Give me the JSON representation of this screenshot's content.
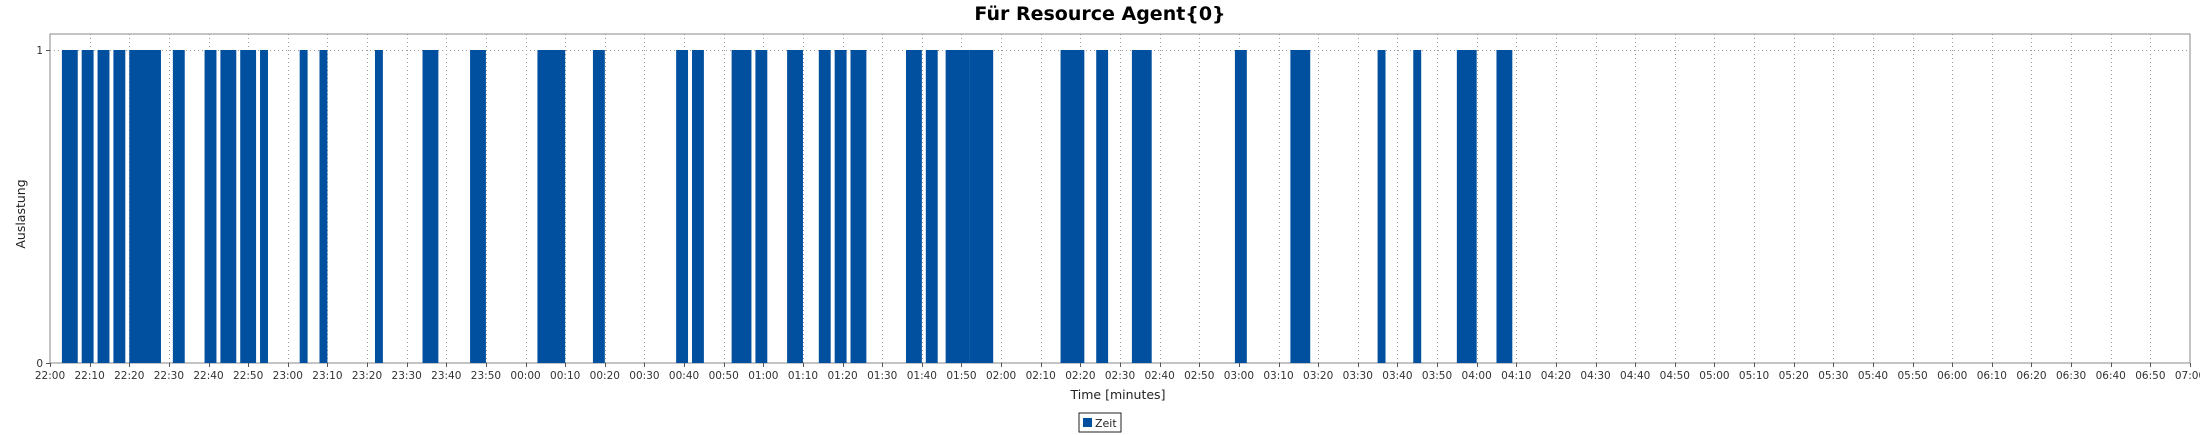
{
  "chart_data": {
    "type": "bar",
    "title": "Für Resource Agent{0}",
    "xlabel": "Time [minutes]",
    "ylabel": "Auslastung",
    "x_range_minutes": [
      0,
      540
    ],
    "x_start_clock": "22:00",
    "x_tick_step_minutes": 10,
    "x_tick_labels": [
      "22:00",
      "22:10",
      "22:20",
      "22:30",
      "22:40",
      "22:50",
      "23:00",
      "23:10",
      "23:20",
      "23:30",
      "23:40",
      "23:50",
      "00:00",
      "00:10",
      "00:20",
      "00:30",
      "00:40",
      "00:50",
      "01:00",
      "01:10",
      "01:20",
      "01:30",
      "01:40",
      "01:50",
      "02:00",
      "02:10",
      "02:20",
      "02:30",
      "02:40",
      "02:50",
      "03:00",
      "03:10",
      "03:20",
      "03:30",
      "03:40",
      "03:50",
      "04:00",
      "04:10",
      "04:20",
      "04:30",
      "04:40",
      "04:50",
      "05:00",
      "05:10",
      "05:20",
      "05:30",
      "05:40",
      "05:50",
      "06:00",
      "06:10",
      "06:20",
      "06:30",
      "06:40",
      "06:50",
      "07:00"
    ],
    "ylim": [
      0,
      1
    ],
    "y_ticks": [
      0,
      1
    ],
    "grid": true,
    "legend_position": "bottom-center",
    "series": [
      {
        "name": "Zeit",
        "color": "#00509f",
        "intervals": [
          [
            "22:03",
            "22:07"
          ],
          [
            "22:08",
            "22:11"
          ],
          [
            "22:12",
            "22:15"
          ],
          [
            "22:16",
            "22:19"
          ],
          [
            "22:20",
            "22:28"
          ],
          [
            "22:31",
            "22:34"
          ],
          [
            "22:39",
            "22:42"
          ],
          [
            "22:43",
            "22:47"
          ],
          [
            "22:48",
            "22:52"
          ],
          [
            "22:53",
            "22:55"
          ],
          [
            "23:03",
            "23:05"
          ],
          [
            "23:08",
            "23:10"
          ],
          [
            "23:22",
            "23:24"
          ],
          [
            "23:34",
            "23:38"
          ],
          [
            "23:46",
            "23:50"
          ],
          [
            "00:03",
            "00:10"
          ],
          [
            "00:17",
            "00:20"
          ],
          [
            "00:38",
            "00:41"
          ],
          [
            "00:42",
            "00:45"
          ],
          [
            "00:52",
            "00:57"
          ],
          [
            "00:58",
            "01:01"
          ],
          [
            "01:06",
            "01:10"
          ],
          [
            "01:14",
            "01:17"
          ],
          [
            "01:18",
            "01:21"
          ],
          [
            "01:22",
            "01:26"
          ],
          [
            "01:36",
            "01:40"
          ],
          [
            "01:41",
            "01:44"
          ],
          [
            "01:46",
            "01:52"
          ],
          [
            "01:52",
            "01:58"
          ],
          [
            "02:15",
            "02:21"
          ],
          [
            "02:24",
            "02:27"
          ],
          [
            "02:33",
            "02:38"
          ],
          [
            "02:59",
            "03:02"
          ],
          [
            "03:13",
            "03:18"
          ],
          [
            "03:35",
            "03:37"
          ],
          [
            "03:44",
            "03:46"
          ],
          [
            "03:55",
            "04:00"
          ],
          [
            "04:05",
            "04:09"
          ]
        ]
      }
    ]
  },
  "colors": {
    "bar": "#00509f",
    "grid": "#9a9a9a",
    "plot_border": "#8a8a8a",
    "axis": "#555555"
  }
}
